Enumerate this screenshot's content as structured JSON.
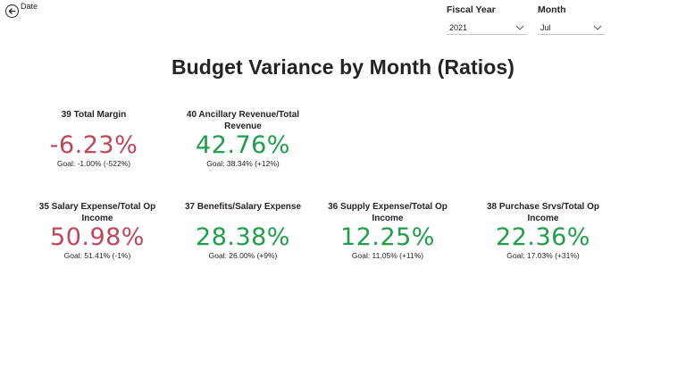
{
  "nav": {
    "back_label": "Date",
    "back_icon": "arrow-left-circle-icon"
  },
  "filters": {
    "fiscal_year": {
      "title": "Fiscal Year",
      "value": "2021"
    },
    "month": {
      "title": "Month",
      "value": "Jul"
    }
  },
  "page": {
    "title": "Budget Variance by Month (Ratios)"
  },
  "colors": {
    "negative": "#c0465a",
    "positive": "#1f9e4b"
  },
  "cards": [
    {
      "title": "39 Total Margin",
      "value": "-6.23%",
      "goal": "Goal: -1.00% (-522%)",
      "status": "red"
    },
    {
      "title": "40 Ancillary Revenue/Total Revenue",
      "value": "42.76%",
      "goal": "Goal: 38.34% (+12%)",
      "status": "green"
    },
    {
      "title": "35 Salary Expense/Total Op Income",
      "value": "50.98%",
      "goal": "Goal: 51.41% (-1%)",
      "status": "red"
    },
    {
      "title": "37 Benefits/Salary Expense",
      "value": "28.38%",
      "goal": "Goal: 26.00% (+9%)",
      "status": "green"
    },
    {
      "title": "36 Supply Expense/Total Op Income",
      "value": "12.25%",
      "goal": "Goal: 11.05% (+11%)",
      "status": "green"
    },
    {
      "title": "38 Purchase Srvs/Total Op Income",
      "value": "22.36%",
      "goal": "Goal: 17.03% (+31%)",
      "status": "green"
    }
  ]
}
